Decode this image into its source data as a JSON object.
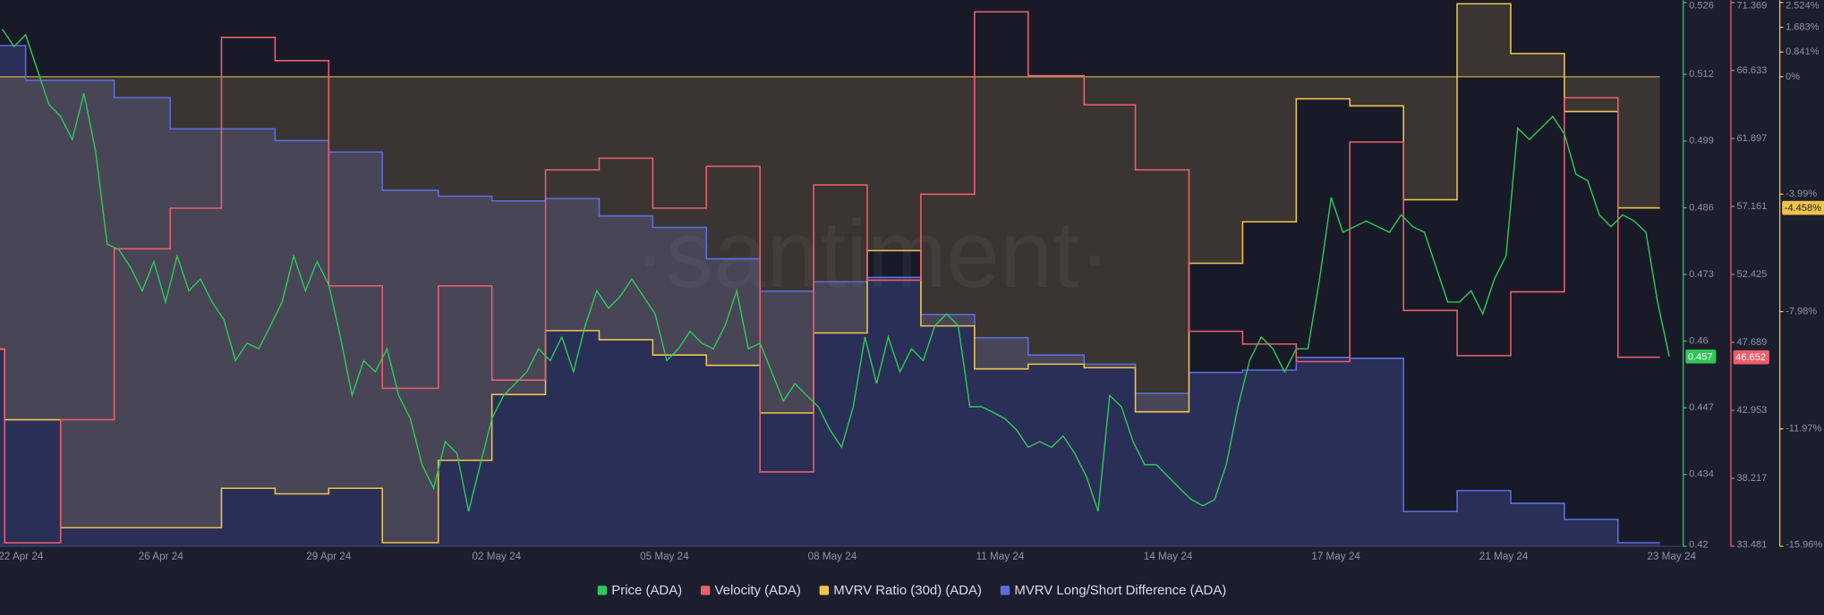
{
  "chart_data": {
    "type": "line",
    "watermark": "·santiment·",
    "xlim": [
      27,
      748
    ],
    "xticks": [
      {
        "value": 0,
        "label": "22 Apr 24"
      },
      {
        "value": 96,
        "label": "26 Apr 24"
      },
      {
        "value": 168,
        "label": "29 Apr 24"
      },
      {
        "value": 240,
        "label": "02 May 24"
      },
      {
        "value": 312,
        "label": "05 May 24"
      },
      {
        "value": 384,
        "label": "08 May 24"
      },
      {
        "value": 456,
        "label": "11 May 24"
      },
      {
        "value": 528,
        "label": "14 May 24"
      },
      {
        "value": 600,
        "label": "17 May 24"
      },
      {
        "value": 672,
        "label": "21 May 24"
      },
      {
        "value": 744,
        "label": "23 May 24"
      }
    ],
    "ylim": [
      0.42,
      0.526
    ],
    "yticks": [
      0.42,
      0.434,
      0.447,
      0.46,
      0.473,
      0.486,
      0.499,
      0.512,
      0.526
    ],
    "y2lim": [
      33.481,
      71.369
    ],
    "y2ticks": [
      33.481,
      38.217,
      42.953,
      47.689,
      52.425,
      57.161,
      61.897,
      66.633,
      71.369
    ],
    "y3lim": [
      -15.96,
      2.524
    ],
    "y3ticks": [
      {
        "value": -15.96,
        "label": "-15.96%"
      },
      {
        "value": -11.97,
        "label": "-11.97%"
      },
      {
        "value": -7.98,
        "label": "-7.98%"
      },
      {
        "value": -3.99,
        "label": "-3.99%"
      },
      {
        "value": 0,
        "label": "0%"
      },
      {
        "value": 0.841,
        "label": "0.841%"
      },
      {
        "value": 1.683,
        "label": "1.683%"
      },
      {
        "value": 2.524,
        "label": "2.524%"
      }
    ],
    "series": [
      {
        "name": "Price (ADA)",
        "color": "#2fc75a",
        "axis": "y",
        "step": false,
        "last_label": "0.457",
        "x": [
          28,
          33,
          38,
          43,
          48,
          53,
          58,
          63,
          68,
          73,
          78,
          83,
          88,
          93,
          98,
          103,
          108,
          113,
          118,
          123,
          128,
          133,
          138,
          143,
          148,
          153,
          158,
          163,
          168,
          173,
          178,
          183,
          188,
          193,
          198,
          203,
          208,
          213,
          218,
          223,
          228,
          233,
          238,
          243,
          248,
          253,
          258,
          263,
          268,
          273,
          278,
          283,
          288,
          293,
          298,
          303,
          308,
          313,
          318,
          323,
          328,
          333,
          338,
          343,
          348,
          353,
          358,
          363,
          368,
          373,
          378,
          383,
          388,
          393,
          398,
          403,
          408,
          413,
          418,
          423,
          428,
          433,
          438,
          443,
          448,
          453,
          458,
          463,
          468,
          473,
          478,
          483,
          488,
          493,
          498,
          503,
          508,
          513,
          518,
          523,
          528,
          533,
          538,
          543,
          548,
          553,
          558,
          563,
          568,
          573,
          578,
          583,
          588,
          593,
          598,
          603,
          608,
          613,
          618,
          623,
          628,
          633,
          638,
          643,
          648,
          653,
          658,
          663,
          668,
          673,
          678,
          683,
          688,
          693,
          698,
          703,
          708,
          713,
          718,
          723,
          728,
          733,
          738,
          743
        ],
        "values": [
          0.5208,
          0.5174,
          0.5197,
          0.5129,
          0.5061,
          0.5038,
          0.4993,
          0.5083,
          0.497,
          0.4789,
          0.4778,
          0.4744,
          0.4698,
          0.4755,
          0.4676,
          0.4766,
          0.4698,
          0.4721,
          0.4676,
          0.4642,
          0.4562,
          0.4596,
          0.4585,
          0.463,
          0.4676,
          0.4766,
          0.4698,
          0.4755,
          0.471,
          0.4608,
          0.4494,
          0.4562,
          0.454,
          0.4585,
          0.4494,
          0.4449,
          0.4359,
          0.4313,
          0.4404,
          0.4381,
          0.4268,
          0.4359,
          0.4449,
          0.4494,
          0.4517,
          0.454,
          0.4585,
          0.4562,
          0.4608,
          0.454,
          0.463,
          0.4698,
          0.4664,
          0.4687,
          0.4721,
          0.4687,
          0.4653,
          0.4562,
          0.4585,
          0.4619,
          0.4596,
          0.4585,
          0.463,
          0.4698,
          0.4585,
          0.4596,
          0.454,
          0.4483,
          0.4517,
          0.4494,
          0.4472,
          0.4427,
          0.4393,
          0.4472,
          0.4608,
          0.4517,
          0.4608,
          0.454,
          0.4585,
          0.4562,
          0.463,
          0.4653,
          0.463,
          0.4472,
          0.4472,
          0.4461,
          0.4449,
          0.4427,
          0.4393,
          0.4404,
          0.4393,
          0.4415,
          0.4381,
          0.4336,
          0.4268,
          0.4494,
          0.4472,
          0.4404,
          0.4359,
          0.4359,
          0.4336,
          0.4313,
          0.4291,
          0.4279,
          0.4291,
          0.4359,
          0.4472,
          0.4562,
          0.4608,
          0.4585,
          0.454,
          0.4585,
          0.4585,
          0.4721,
          0.488,
          0.4812,
          0.4823,
          0.4834,
          0.4823,
          0.4812,
          0.4846,
          0.4823,
          0.4812,
          0.4744,
          0.4676,
          0.4676,
          0.4698,
          0.4653,
          0.4721,
          0.4766,
          0.5015,
          0.4993,
          0.5015,
          0.5038,
          0.5004,
          0.4925,
          0.4913,
          0.4846,
          0.4823,
          0.4846,
          0.4834,
          0.4812,
          0.4676,
          0.457
        ]
      },
      {
        "name": "Velocity (ADA)",
        "color": "#ee5f6b",
        "axis": "y2",
        "step": true,
        "last_label": "46.652",
        "x": [
          27,
          29,
          53,
          76,
          100,
          122,
          145,
          168,
          191,
          215,
          238,
          261,
          284,
          307,
          330,
          353,
          376,
          399,
          422,
          445,
          468,
          492,
          514,
          537,
          560,
          583,
          606,
          629,
          652,
          675,
          698,
          721,
          739
        ],
        "values": [
          47.24,
          33.72,
          42.3,
          54.21,
          57.04,
          68.94,
          67.32,
          51.62,
          44.49,
          51.62,
          45.06,
          59.71,
          60.52,
          57.04,
          59.95,
          38.66,
          58.66,
          52.02,
          58.01,
          70.72,
          66.27,
          64.24,
          59.71,
          48.46,
          47.57,
          46.35,
          61.65,
          49.91,
          46.76,
          51.21,
          64.73,
          46.652,
          46.652
        ]
      },
      {
        "name": "MVRV Ratio (30d) (ADA)",
        "color": "#f0c44a",
        "axis": "y3",
        "step": true,
        "fill": "zero",
        "last_label": "-4.458%",
        "x": [
          27,
          29,
          53,
          122,
          145,
          168,
          191,
          215,
          238,
          261,
          284,
          307,
          330,
          353,
          376,
          399,
          422,
          445,
          468,
          492,
          514,
          537,
          560,
          583,
          606,
          629,
          652,
          675,
          698,
          721,
          739
        ],
        "values": [
          -9.26,
          -11.66,
          -15.33,
          -13.99,
          -14.18,
          -13.99,
          -15.84,
          -13.04,
          -10.8,
          -8.63,
          -8.94,
          -9.46,
          -9.81,
          -11.43,
          -8.71,
          -5.91,
          -8.47,
          -9.93,
          -9.77,
          -9.89,
          -11.39,
          -6.34,
          -4.93,
          -0.75,
          -0.99,
          -4.18,
          2.48,
          0.79,
          -1.18,
          -4.458,
          -4.458
        ]
      },
      {
        "name": "MVRV Long/Short Difference (ADA)",
        "color": "#5b6ee0",
        "axis": "y3",
        "step": true,
        "fill": "bottom",
        "x": [
          27,
          38,
          76,
          100,
          145,
          168,
          191,
          215,
          238,
          261,
          284,
          307,
          330,
          353,
          376,
          399,
          422,
          445,
          468,
          492,
          514,
          537,
          560,
          583,
          606,
          629,
          652,
          675,
          698,
          721,
          739
        ],
        "values": [
          1.06,
          -0.12,
          -0.71,
          -1.77,
          -2.17,
          -2.56,
          -3.86,
          -4.06,
          -4.22,
          -4.14,
          -4.73,
          -5.12,
          -6.19,
          -7.29,
          -6.97,
          -6.82,
          -8.08,
          -8.87,
          -9.46,
          -9.77,
          -10.76,
          -10.05,
          -9.97,
          -9.54,
          -9.57,
          -14.78,
          -14.07,
          -14.5,
          -15.05,
          -15.84,
          -15.84
        ]
      }
    ]
  }
}
